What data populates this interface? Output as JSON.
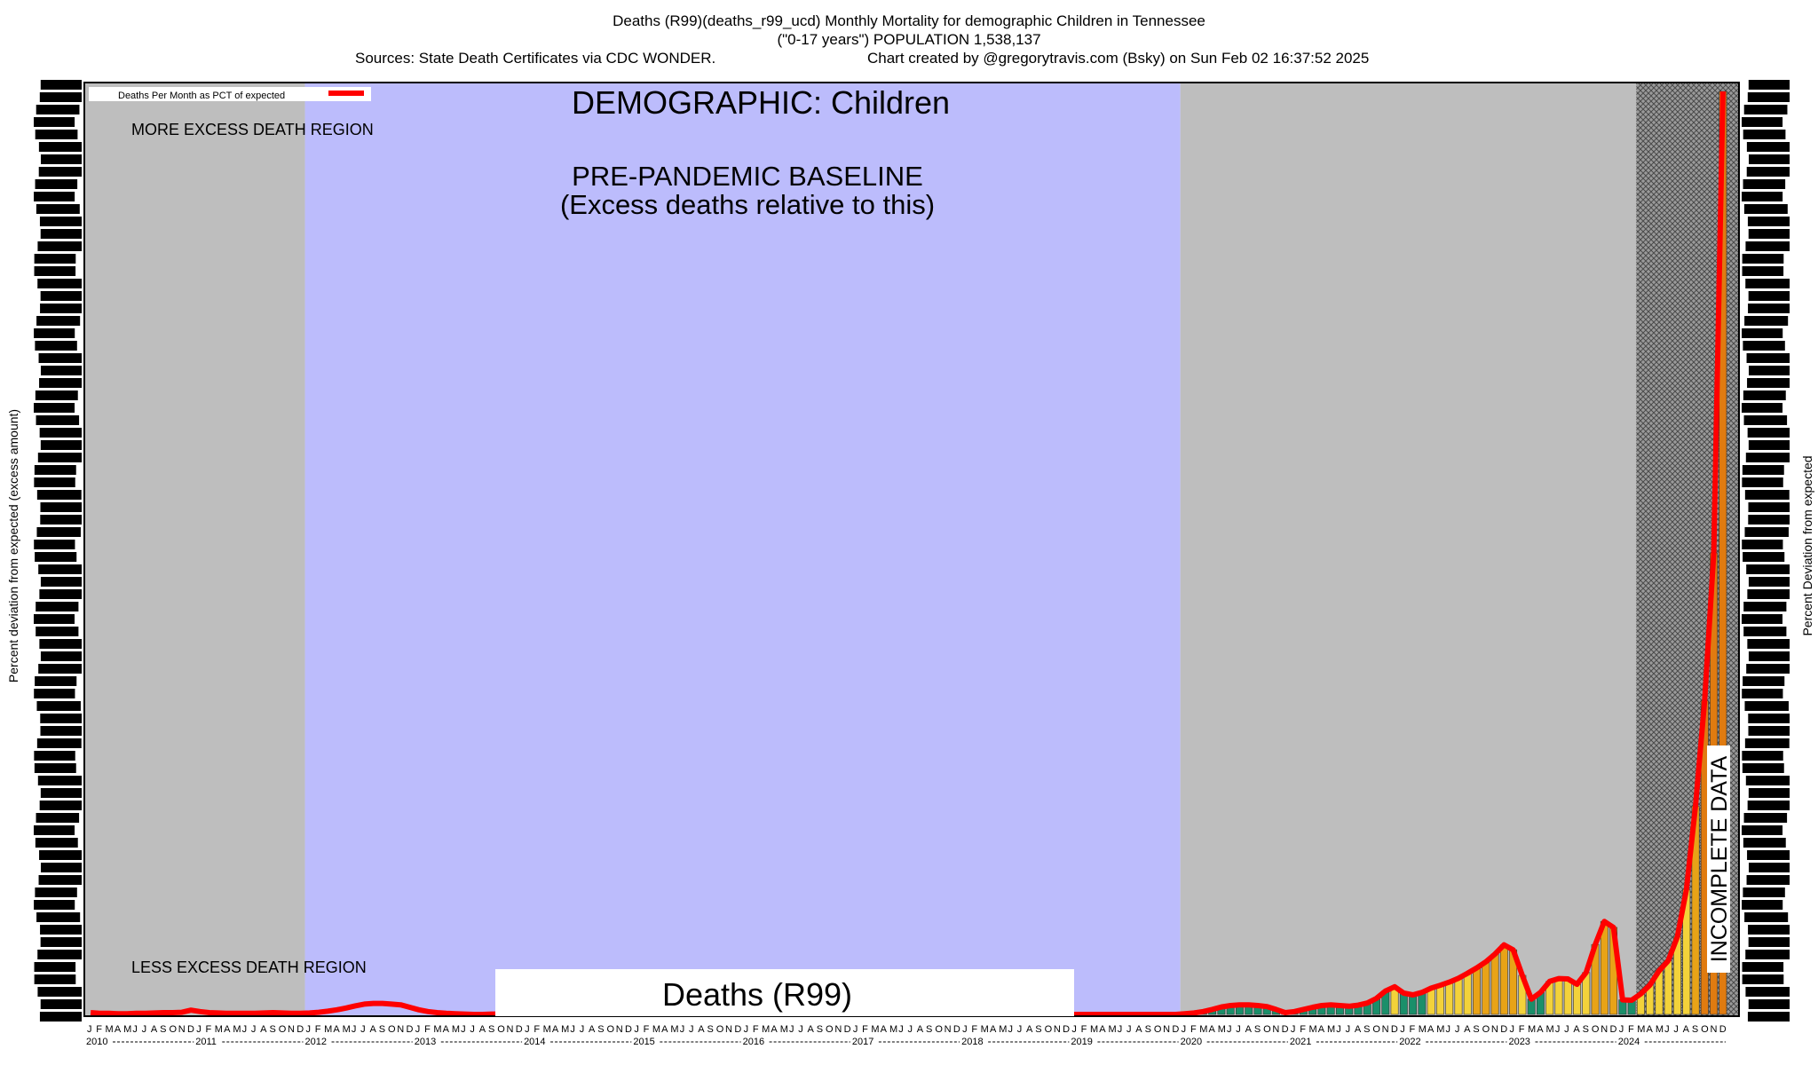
{
  "header": {
    "title_line1": "Deaths (R99)(deaths_r99_ucd) Monthly Mortality for demographic Children in Tennessee",
    "title_line2": "(\"0-17 years\") POPULATION 1,538,137",
    "sources": "Sources: State Death Certificates via CDC WONDER.",
    "credit": "Chart created by @gregorytravis.com (Bsky) on Sun Feb 02 16:37:52 2025"
  },
  "legend": {
    "label": "Deaths Per Month as PCT of expected",
    "color": "#ff0000"
  },
  "annotations": {
    "demographic": "DEMOGRAPHIC: Children",
    "more_excess": "MORE EXCESS DEATH REGION",
    "less_excess": "LESS EXCESS DEATH REGION",
    "baseline_line1": "PRE-PANDEMIC BASELINE",
    "baseline_line2": "(Excess deaths relative to this)",
    "cause_box": "Deaths (R99)",
    "incomplete": "INCOMPLETE DATA"
  },
  "axes": {
    "ylabel_left": "Percent deviation from expected (excess amount)",
    "ylabel_right": "Percent Deviation from expected"
  },
  "colors": {
    "baseline_region": "#bcbcfc",
    "grey_region": "#bebebe",
    "line": "#ff0000",
    "bar_low": "#1a8f6a",
    "bar_mid": "#f3d23a",
    "bar_high": "#e8a317",
    "bar_top": "#e07b10"
  },
  "chart_data": {
    "type": "line",
    "title": "Deaths (R99)(deaths_r99_ucd) Monthly Mortality for demographic Children in Tennessee",
    "ylabel": "Percent deviation from expected (excess amount)",
    "y2label": "Percent Deviation from expected",
    "month_labels": [
      "J",
      "F",
      "M",
      "A",
      "M",
      "J",
      "J",
      "A",
      "S",
      "O",
      "N",
      "D"
    ],
    "year_labels": [
      "2010",
      "2011",
      "2012",
      "2013",
      "2014",
      "2015",
      "2016",
      "2017",
      "2018",
      "2019",
      "2020",
      "2021",
      "2022",
      "2023",
      "2024"
    ],
    "baseline_period": [
      "2012-01",
      "2019-12"
    ],
    "incomplete_period": [
      "2024-03",
      "2024-12"
    ],
    "grid": false,
    "legend_position": "top-left",
    "series": [
      {
        "name": "Deaths Per Month as PCT of expected",
        "y_start": "2010-01",
        "y_end": "2024-12",
        "values_relative": [
          0.5,
          0.3,
          0.3,
          0.2,
          0.2,
          0.3,
          0.3,
          0.4,
          0.5,
          0.5,
          0.6,
          1.2,
          0.8,
          0.5,
          0.4,
          0.3,
          0.3,
          0.3,
          0.3,
          0.4,
          0.5,
          0.4,
          0.3,
          0.3,
          0.4,
          0.6,
          0.9,
          1.3,
          1.8,
          2.4,
          2.9,
          3.1,
          3.1,
          2.9,
          2.7,
          2.0,
          1.3,
          0.8,
          0.5,
          0.3,
          0.2,
          0.1,
          0.0,
          0.0,
          0.1,
          0.1,
          0.0,
          0.0,
          0.0,
          0.0,
          0.0,
          0.0,
          0.0,
          0.0,
          0.0,
          0.0,
          0.0,
          0.0,
          0.0,
          0.0,
          0.0,
          0.0,
          0.0,
          0.0,
          0.0,
          0.0,
          0.0,
          0.0,
          0.0,
          0.0,
          0.0,
          0.0,
          0.0,
          0.0,
          0.0,
          0.0,
          0.0,
          0.0,
          0.0,
          0.0,
          0.0,
          0.0,
          0.0,
          0.0,
          0.0,
          0.0,
          0.0,
          0.0,
          0.0,
          0.0,
          0.0,
          0.0,
          0.0,
          0.0,
          0.0,
          0.0,
          0.0,
          0.0,
          0.0,
          0.0,
          0.0,
          0.0,
          0.0,
          0.0,
          0.0,
          0.0,
          0.0,
          0.0,
          0.0,
          0.0,
          0.0,
          0.0,
          0.0,
          0.0,
          0.0,
          0.0,
          0.0,
          0.0,
          0.0,
          0.0,
          0.2,
          0.4,
          0.8,
          1.4,
          2.1,
          2.5,
          2.7,
          2.7,
          2.5,
          2.2,
          1.4,
          0.5,
          0.8,
          1.4,
          2.0,
          2.5,
          2.7,
          2.5,
          2.3,
          2.6,
          3.2,
          4.5,
          6.6,
          7.8,
          6.0,
          5.5,
          6.2,
          7.4,
          8.2,
          9.1,
          10.2,
          11.6,
          13.1,
          14.8,
          17.0,
          19.6,
          18.2,
          11.0,
          4.3,
          6.2,
          9.3,
          10.1,
          10.0,
          8.5,
          11.8,
          19.7,
          26.2,
          24.5,
          4.1,
          4.0,
          5.8,
          8.3,
          12.3,
          15.1,
          21.8,
          35.2,
          58.7,
          88.4,
          130.0,
          260.0
        ]
      }
    ]
  }
}
